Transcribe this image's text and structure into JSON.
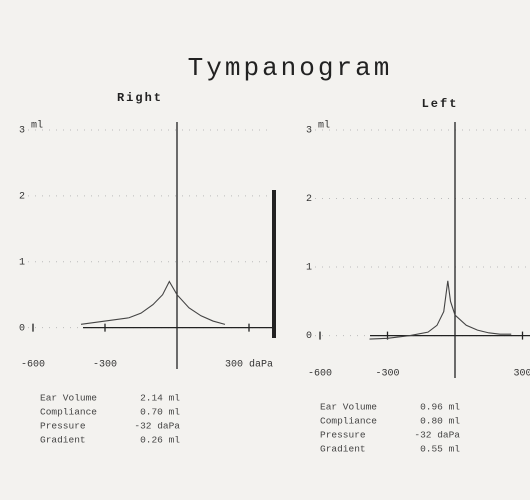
{
  "title": "Tympanogram",
  "chart_data": [
    {
      "type": "line",
      "title": "Right",
      "y_unit": "ml",
      "color": "#444",
      "grid": true,
      "x": [
        -400,
        -300,
        -200,
        -150,
        -100,
        -60,
        -32,
        0,
        50,
        100,
        150,
        200
      ],
      "values": [
        0.05,
        0.1,
        0.15,
        0.22,
        0.35,
        0.5,
        0.7,
        0.5,
        0.3,
        0.18,
        0.1,
        0.05
      ],
      "xlim": [
        -600,
        400
      ],
      "xticks": [
        -600,
        -300,
        {
          "value": 300,
          "label": "300 daPa"
        }
      ],
      "ylim": [
        -0.4,
        3
      ],
      "yticks": [
        0,
        1,
        2,
        3
      ],
      "measurements": [
        {
          "label": "Ear Volume",
          "value": "2.14 ml"
        },
        {
          "label": "Compliance",
          "value": "0.70 ml"
        },
        {
          "label": "Pressure",
          "value": "-32 daPa"
        },
        {
          "label": "Gradient",
          "value": "0.26 ml"
        }
      ]
    },
    {
      "type": "line",
      "title": "Left",
      "y_unit": "ml",
      "color": "#444",
      "grid": true,
      "x": [
        -380,
        -300,
        -200,
        -120,
        -80,
        -50,
        -32,
        -20,
        0,
        50,
        100,
        150,
        200,
        250
      ],
      "values": [
        -0.05,
        -0.04,
        0,
        0.05,
        0.15,
        0.35,
        0.8,
        0.5,
        0.3,
        0.15,
        0.08,
        0.04,
        0.02,
        0.02
      ],
      "xlim": [
        -600,
        400
      ],
      "xticks": [
        -600,
        -300,
        300
      ],
      "ylim": [
        -0.4,
        3
      ],
      "yticks": [
        0,
        1,
        2,
        3
      ],
      "measurements": [
        {
          "label": "Ear Volume",
          "value": "0.96 ml"
        },
        {
          "label": "Compliance",
          "value": "0.80 ml"
        },
        {
          "label": "Pressure",
          "value": "-32 daPa"
        },
        {
          "label": "Gradient",
          "value": "0.55 ml"
        }
      ]
    }
  ]
}
